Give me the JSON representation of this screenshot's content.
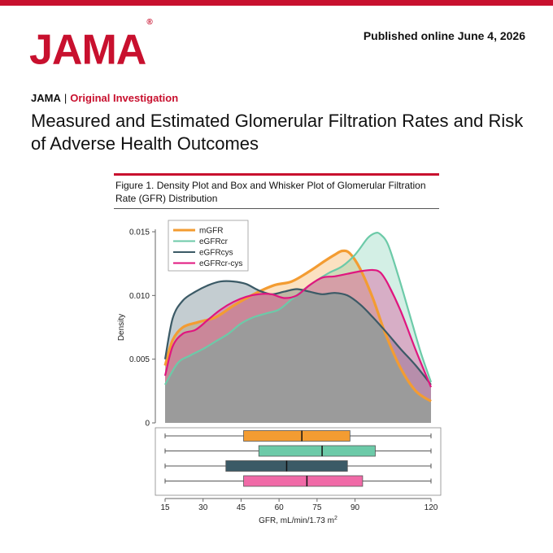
{
  "header": {
    "logo_text": "JAMA",
    "logo_mark": "®",
    "published": "Published online June 4, 2026"
  },
  "article": {
    "journal": "JAMA",
    "separator": "|",
    "section": "Original Investigation",
    "title": "Measured and Estimated Glomerular Filtration Rates and Risk of Adverse Health Outcomes"
  },
  "figure": {
    "title": "Figure 1. Density Plot and Box and Whisker Plot of Glomerular Filtration Rate (GFR) Distribution"
  },
  "colors": {
    "brand": "#c8102e",
    "mGFR": "#f39c32",
    "eGFRcr": "#6ccaa8",
    "eGFRcys": "#3b5a66",
    "eGFRcr-cys": "#e0167f"
  },
  "chart_data": {
    "type": "area",
    "xlabel": "GFR, mL/min/1.73 m",
    "xlabel_sup": "2",
    "ylabel": "Density",
    "xlim": [
      15,
      120
    ],
    "ylim": [
      0,
      0.015
    ],
    "x_ticks": [
      15,
      30,
      45,
      60,
      75,
      90,
      120
    ],
    "y_ticks": [
      {
        "value": 0,
        "label": "0"
      },
      {
        "value": 0.005,
        "label": "0.005"
      },
      {
        "value": 0.01,
        "label": "0.010"
      },
      {
        "value": 0.015,
        "label": "0.015"
      }
    ],
    "legend_position": "top-left",
    "series": [
      {
        "name": "mGFR",
        "color": "#f39c32",
        "x": [
          15,
          18,
          22,
          28,
          35,
          42,
          50,
          58,
          65,
          72,
          78,
          82,
          85,
          88,
          92,
          97,
          102,
          108,
          114,
          120
        ],
        "y": [
          0.0045,
          0.0065,
          0.0075,
          0.0079,
          0.0083,
          0.0092,
          0.0101,
          0.0108,
          0.0111,
          0.0119,
          0.0127,
          0.0132,
          0.0135,
          0.0133,
          0.0121,
          0.0098,
          0.007,
          0.0043,
          0.0025,
          0.0017
        ]
      },
      {
        "name": "eGFRcr",
        "color": "#6ccaa8",
        "x": [
          15,
          20,
          25,
          30,
          35,
          40,
          45,
          50,
          55,
          60,
          65,
          70,
          75,
          80,
          85,
          90,
          95,
          98,
          100,
          103,
          107,
          112,
          116,
          120
        ],
        "y": [
          0.003,
          0.0047,
          0.0053,
          0.0058,
          0.0064,
          0.007,
          0.0078,
          0.0083,
          0.0086,
          0.0089,
          0.0097,
          0.0105,
          0.0112,
          0.0118,
          0.0123,
          0.0132,
          0.0145,
          0.0149,
          0.0148,
          0.014,
          0.0116,
          0.0082,
          0.0055,
          0.0032
        ]
      },
      {
        "name": "eGFRcys",
        "color": "#3b5a66",
        "x": [
          15,
          18,
          22,
          27,
          32,
          37,
          42,
          47,
          52,
          57,
          62,
          67,
          72,
          77,
          82,
          87,
          92,
          97,
          102,
          108,
          114,
          120
        ],
        "y": [
          0.005,
          0.0082,
          0.0096,
          0.0103,
          0.0108,
          0.0111,
          0.0111,
          0.0109,
          0.0104,
          0.0101,
          0.0103,
          0.0105,
          0.0103,
          0.0101,
          0.0102,
          0.01,
          0.0093,
          0.0083,
          0.0072,
          0.0058,
          0.0045,
          0.003
        ]
      },
      {
        "name": "eGFRcr-cys",
        "color": "#e0167f",
        "x": [
          15,
          18,
          22,
          27,
          32,
          37,
          42,
          47,
          52,
          57,
          62,
          67,
          72,
          77,
          82,
          87,
          92,
          97,
          100,
          103,
          108,
          114,
          120
        ],
        "y": [
          0.0037,
          0.006,
          0.007,
          0.0073,
          0.0081,
          0.0089,
          0.0095,
          0.0099,
          0.0101,
          0.0101,
          0.0098,
          0.01,
          0.0108,
          0.0114,
          0.0115,
          0.0117,
          0.0119,
          0.012,
          0.0118,
          0.0109,
          0.0088,
          0.0057,
          0.0028
        ]
      }
    ],
    "boxplots": [
      {
        "name": "mGFR",
        "color": "#f39c32",
        "min": 15,
        "q1": 46,
        "median": 69,
        "q3": 88,
        "max": 120
      },
      {
        "name": "eGFRcr",
        "color": "#6ccaa8",
        "min": 15,
        "q1": 52,
        "median": 77,
        "q3": 98,
        "max": 120
      },
      {
        "name": "eGFRcys",
        "color": "#3b5a66",
        "min": 15,
        "q1": 39,
        "median": 63,
        "q3": 87,
        "max": 120
      },
      {
        "name": "eGFRcr-cys",
        "color": "#f06aa7",
        "min": 15,
        "q1": 46,
        "median": 71,
        "q3": 93,
        "max": 120
      }
    ]
  }
}
